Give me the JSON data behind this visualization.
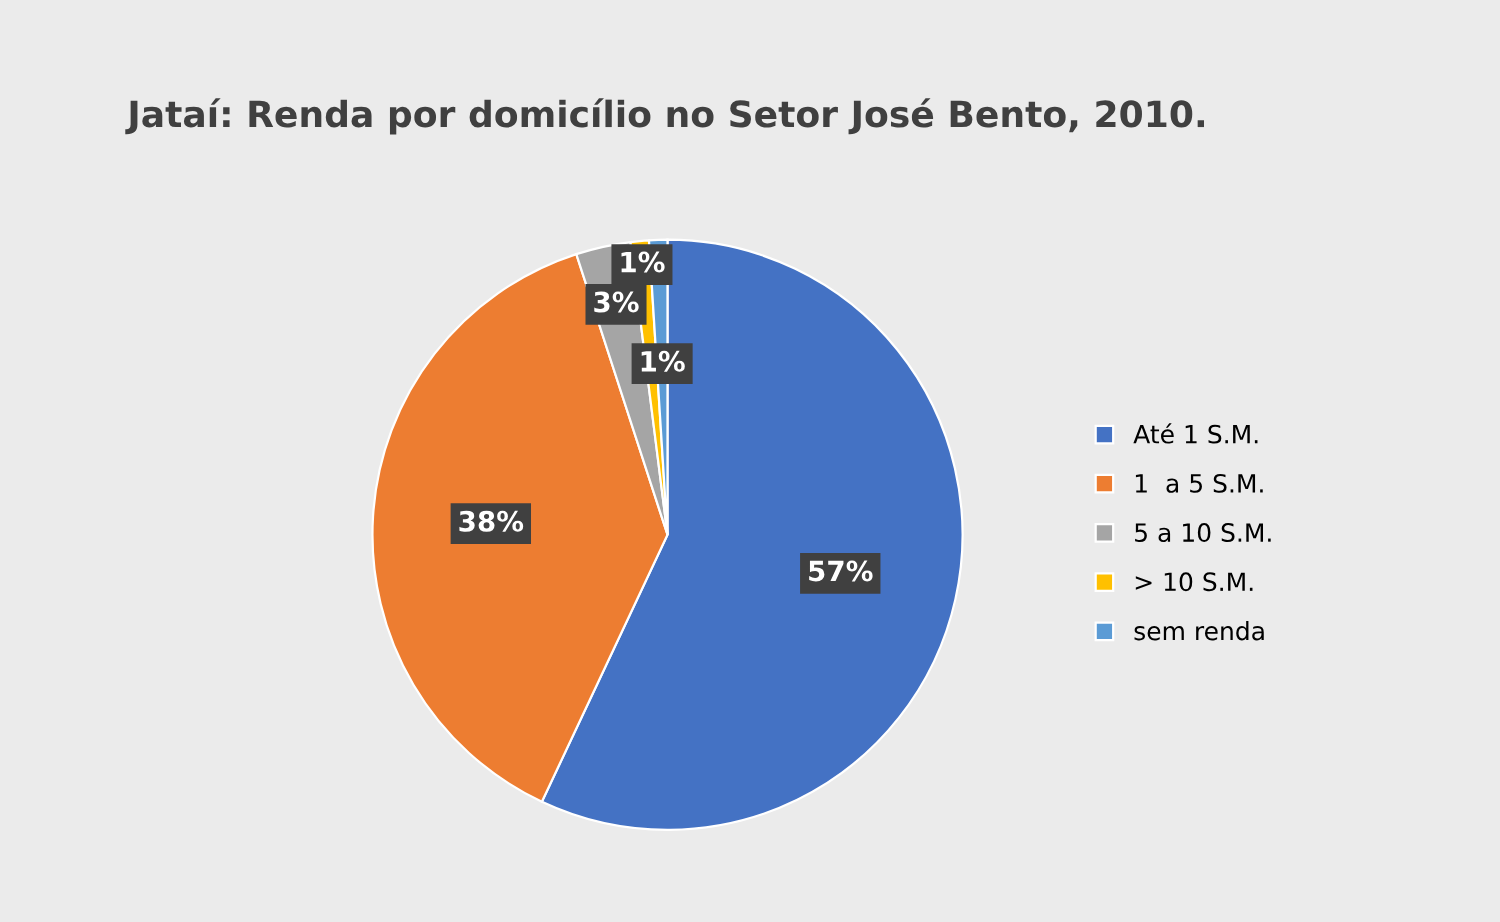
{
  "chart_data": {
    "type": "pie",
    "title": "Jataí: Renda por domicílio no Setor José Bento, 2010.",
    "categories": [
      "Até 1 S.M.",
      "1  a 5 S.M.",
      "5 a 10 S.M.",
      "> 10 S.M.",
      "sem renda"
    ],
    "values": [
      57,
      38,
      3,
      1,
      1
    ],
    "colors": [
      "#4472c4",
      "#ed7d31",
      "#a5a5a5",
      "#ffc000",
      "#5b9bd5"
    ],
    "value_labels": [
      "57%",
      "38%",
      "3%",
      "1%",
      "1%"
    ],
    "legend": "right"
  }
}
